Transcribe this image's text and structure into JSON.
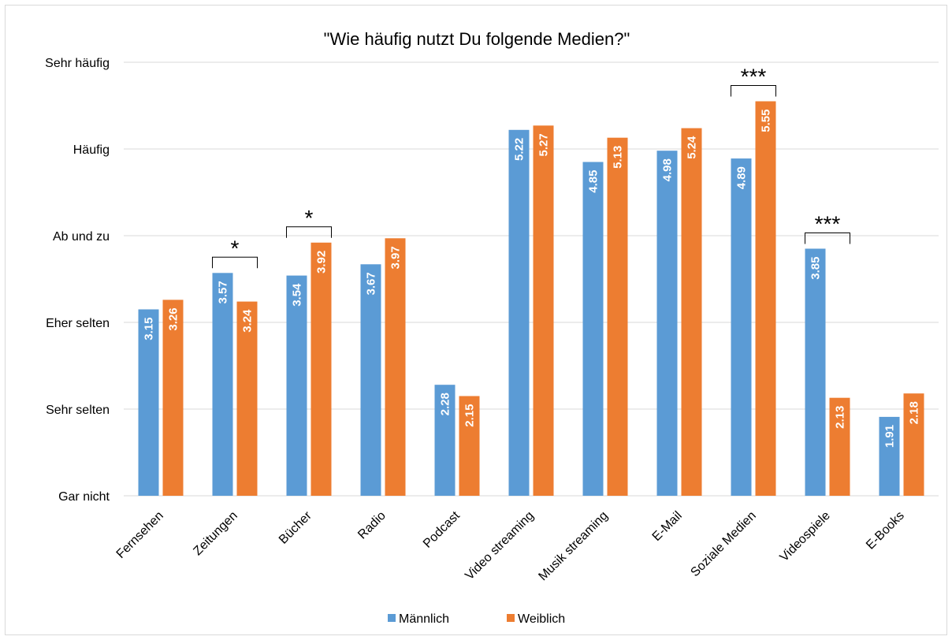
{
  "chart_data": {
    "type": "bar",
    "title": "\"Wie häufig nutzt Du folgende Medien?\"",
    "categories": [
      "Fernsehen",
      "Zeitungen",
      "Bücher",
      "Radio",
      "Podcast",
      "Video streaming",
      "Musik streaming",
      "E-Mail",
      "Soziale Medien",
      "Videospiele",
      "E-Books"
    ],
    "series": [
      {
        "name": "Männlich",
        "color": "#5b9bd5",
        "values": [
          3.15,
          3.57,
          3.54,
          3.67,
          2.28,
          5.22,
          4.85,
          4.98,
          4.89,
          3.85,
          1.91
        ]
      },
      {
        "name": "Weiblich",
        "color": "#ed7d31",
        "values": [
          3.26,
          3.24,
          3.92,
          3.97,
          2.15,
          5.27,
          5.13,
          5.24,
          5.55,
          2.13,
          2.18
        ]
      }
    ],
    "data_labels": [
      [
        "3.15",
        "3.57",
        "3.54",
        "3.67",
        "2.28",
        "5.22",
        "4.85",
        "4.98",
        "4.89",
        "3.85",
        "1.91"
      ],
      [
        "3.26",
        "3.24",
        "3.92",
        "3.97",
        "2.15",
        "5.27",
        "5.13",
        "5.24",
        "5.55",
        "2.13",
        "2.18"
      ]
    ],
    "ylim": [
      1,
      6
    ],
    "yticks": [
      {
        "value": 1,
        "label": "Gar nicht"
      },
      {
        "value": 2,
        "label": "Sehr selten"
      },
      {
        "value": 3,
        "label": "Eher selten"
      },
      {
        "value": 4,
        "label": "Ab und zu"
      },
      {
        "value": 5,
        "label": "Häufig"
      },
      {
        "value": 6,
        "label": "Sehr häufig"
      }
    ],
    "significance": [
      {
        "category": "Zeitungen",
        "label": "*"
      },
      {
        "category": "Bücher",
        "label": "*"
      },
      {
        "category": "Soziale Medien",
        "label": "***"
      },
      {
        "category": "Videospiele",
        "label": "***"
      }
    ],
    "grid": true,
    "legend_position": "bottom",
    "gridline_color": "#d9d9d9"
  }
}
